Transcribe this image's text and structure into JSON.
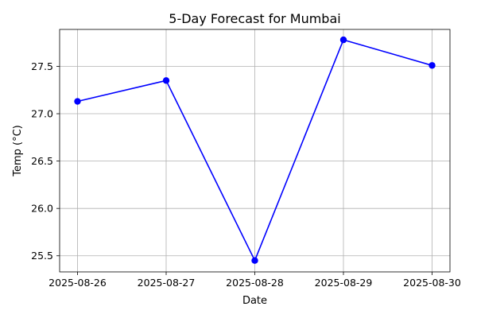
{
  "chart_data": {
    "type": "line",
    "title": "5-Day Forecast for Mumbai",
    "xlabel": "Date",
    "ylabel": "Temp (°C)",
    "categories": [
      "2025-08-26",
      "2025-08-27",
      "2025-08-28",
      "2025-08-29",
      "2025-08-30"
    ],
    "series": [
      {
        "values": [
          27.13,
          27.35,
          25.45,
          27.78,
          27.51
        ],
        "color": "#0000ff",
        "marker": "circle"
      }
    ],
    "ylim": [
      25.33,
      27.89
    ],
    "yticks": [
      "25.5",
      "26.0",
      "26.5",
      "27.0",
      "27.5"
    ],
    "grid": true,
    "legend": "none"
  }
}
